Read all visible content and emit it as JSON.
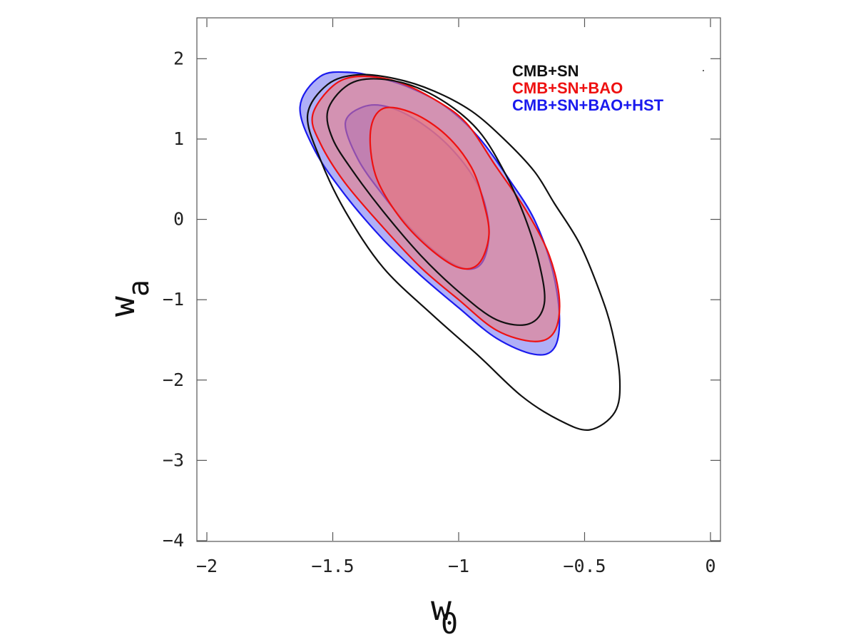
{
  "chart_data": {
    "type": "contour",
    "xlabel": "w",
    "xlabel_sub": "0",
    "ylabel": "w",
    "ylabel_sub": "a",
    "xlim": [
      -2,
      0
    ],
    "ylim": [
      -4,
      2.5
    ],
    "xticks": [
      -2,
      -1.5,
      -1,
      -0.5,
      0
    ],
    "xtick_labels": [
      "−2",
      "−1.5",
      "−1",
      "−0.5",
      "0"
    ],
    "yticks": [
      2,
      1,
      0,
      -1,
      -2,
      -3,
      -4
    ],
    "ytick_labels": [
      "2",
      "1",
      "0",
      "−1",
      "−2",
      "−3",
      "−4"
    ],
    "legend_position": "top-right",
    "series": [
      {
        "name": "CMB+SN+BAO+HST",
        "color": "#1a1aee",
        "fill": "#6d6df0",
        "filled": true,
        "contours": [
          {
            "level": "95%",
            "points": [
              [
                -1.63,
                1.4
              ],
              [
                -1.55,
                1.78
              ],
              [
                -1.43,
                1.83
              ],
              [
                -1.3,
                1.75
              ],
              [
                -1.18,
                1.62
              ],
              [
                -1.05,
                1.4
              ],
              [
                -0.92,
                1.02
              ],
              [
                -0.8,
                0.5
              ],
              [
                -0.7,
                0.0
              ],
              [
                -0.63,
                -0.6
              ],
              [
                -0.6,
                -1.2
              ],
              [
                -0.62,
                -1.6
              ],
              [
                -0.7,
                -1.68
              ],
              [
                -0.85,
                -1.48
              ],
              [
                -1.0,
                -1.1
              ],
              [
                -1.15,
                -0.7
              ],
              [
                -1.3,
                -0.25
              ],
              [
                -1.45,
                0.3
              ],
              [
                -1.57,
                0.85
              ]
            ]
          },
          {
            "level": "68%",
            "points": [
              [
                -1.45,
                1.2
              ],
              [
                -1.38,
                1.4
              ],
              [
                -1.28,
                1.4
              ],
              [
                -1.15,
                1.2
              ],
              [
                -1.02,
                0.85
              ],
              [
                -0.92,
                0.4
              ],
              [
                -0.88,
                -0.1
              ],
              [
                -0.9,
                -0.5
              ],
              [
                -0.96,
                -0.62
              ],
              [
                -1.06,
                -0.48
              ],
              [
                -1.18,
                -0.15
              ],
              [
                -1.3,
                0.3
              ],
              [
                -1.4,
                0.75
              ]
            ]
          }
        ]
      },
      {
        "name": "CMB+SN+BAO",
        "color": "#ee1111",
        "fill": "#f07a7a",
        "filled": true,
        "contours": [
          {
            "level": "95%",
            "points": [
              [
                -1.58,
                1.3
              ],
              [
                -1.5,
                1.66
              ],
              [
                -1.4,
                1.78
              ],
              [
                -1.25,
                1.72
              ],
              [
                -1.1,
                1.5
              ],
              [
                -0.97,
                1.2
              ],
              [
                -0.85,
                0.65
              ],
              [
                -0.73,
                0.1
              ],
              [
                -0.64,
                -0.45
              ],
              [
                -0.6,
                -1.0
              ],
              [
                -0.62,
                -1.4
              ],
              [
                -0.7,
                -1.52
              ],
              [
                -0.85,
                -1.38
              ],
              [
                -1.0,
                -1.0
              ],
              [
                -1.15,
                -0.6
              ],
              [
                -1.3,
                -0.1
              ],
              [
                -1.45,
                0.45
              ],
              [
                -1.55,
                0.95
              ]
            ]
          },
          {
            "level": "68%",
            "points": [
              [
                -1.35,
                1.1
              ],
              [
                -1.3,
                1.38
              ],
              [
                -1.18,
                1.32
              ],
              [
                -1.05,
                1.05
              ],
              [
                -0.95,
                0.65
              ],
              [
                -0.9,
                0.2
              ],
              [
                -0.88,
                -0.2
              ],
              [
                -0.92,
                -0.55
              ],
              [
                -1.0,
                -0.6
              ],
              [
                -1.12,
                -0.35
              ],
              [
                -1.24,
                0.05
              ],
              [
                -1.33,
                0.55
              ]
            ]
          }
        ]
      },
      {
        "name": "CMB+SN",
        "color": "#111111",
        "fill": "none",
        "filled": false,
        "contours": [
          {
            "level": "95%",
            "points": [
              [
                -1.6,
                1.3
              ],
              [
                -1.52,
                1.68
              ],
              [
                -1.4,
                1.8
              ],
              [
                -1.25,
                1.75
              ],
              [
                -1.1,
                1.6
              ],
              [
                -0.95,
                1.35
              ],
              [
                -0.82,
                1.0
              ],
              [
                -0.7,
                0.6
              ],
              [
                -0.62,
                0.2
              ],
              [
                -0.52,
                -0.3
              ],
              [
                -0.44,
                -0.9
              ],
              [
                -0.39,
                -1.4
              ],
              [
                -0.36,
                -2.0
              ],
              [
                -0.38,
                -2.4
              ],
              [
                -0.48,
                -2.62
              ],
              [
                -0.6,
                -2.5
              ],
              [
                -0.75,
                -2.2
              ],
              [
                -0.92,
                -1.7
              ],
              [
                -1.1,
                -1.2
              ],
              [
                -1.3,
                -0.6
              ],
              [
                -1.45,
                0.1
              ],
              [
                -1.55,
                0.75
              ]
            ]
          },
          {
            "level": "68%",
            "points": [
              [
                -1.52,
                1.35
              ],
              [
                -1.45,
                1.65
              ],
              [
                -1.35,
                1.75
              ],
              [
                -1.2,
                1.68
              ],
              [
                -1.05,
                1.45
              ],
              [
                -0.92,
                1.1
              ],
              [
                -0.82,
                0.6
              ],
              [
                -0.74,
                0.05
              ],
              [
                -0.68,
                -0.55
              ],
              [
                -0.66,
                -1.05
              ],
              [
                -0.72,
                -1.3
              ],
              [
                -0.85,
                -1.25
              ],
              [
                -1.0,
                -0.9
              ],
              [
                -1.15,
                -0.45
              ],
              [
                -1.3,
                0.1
              ],
              [
                -1.42,
                0.6
              ],
              [
                -1.5,
                1.0
              ]
            ]
          }
        ]
      }
    ]
  }
}
